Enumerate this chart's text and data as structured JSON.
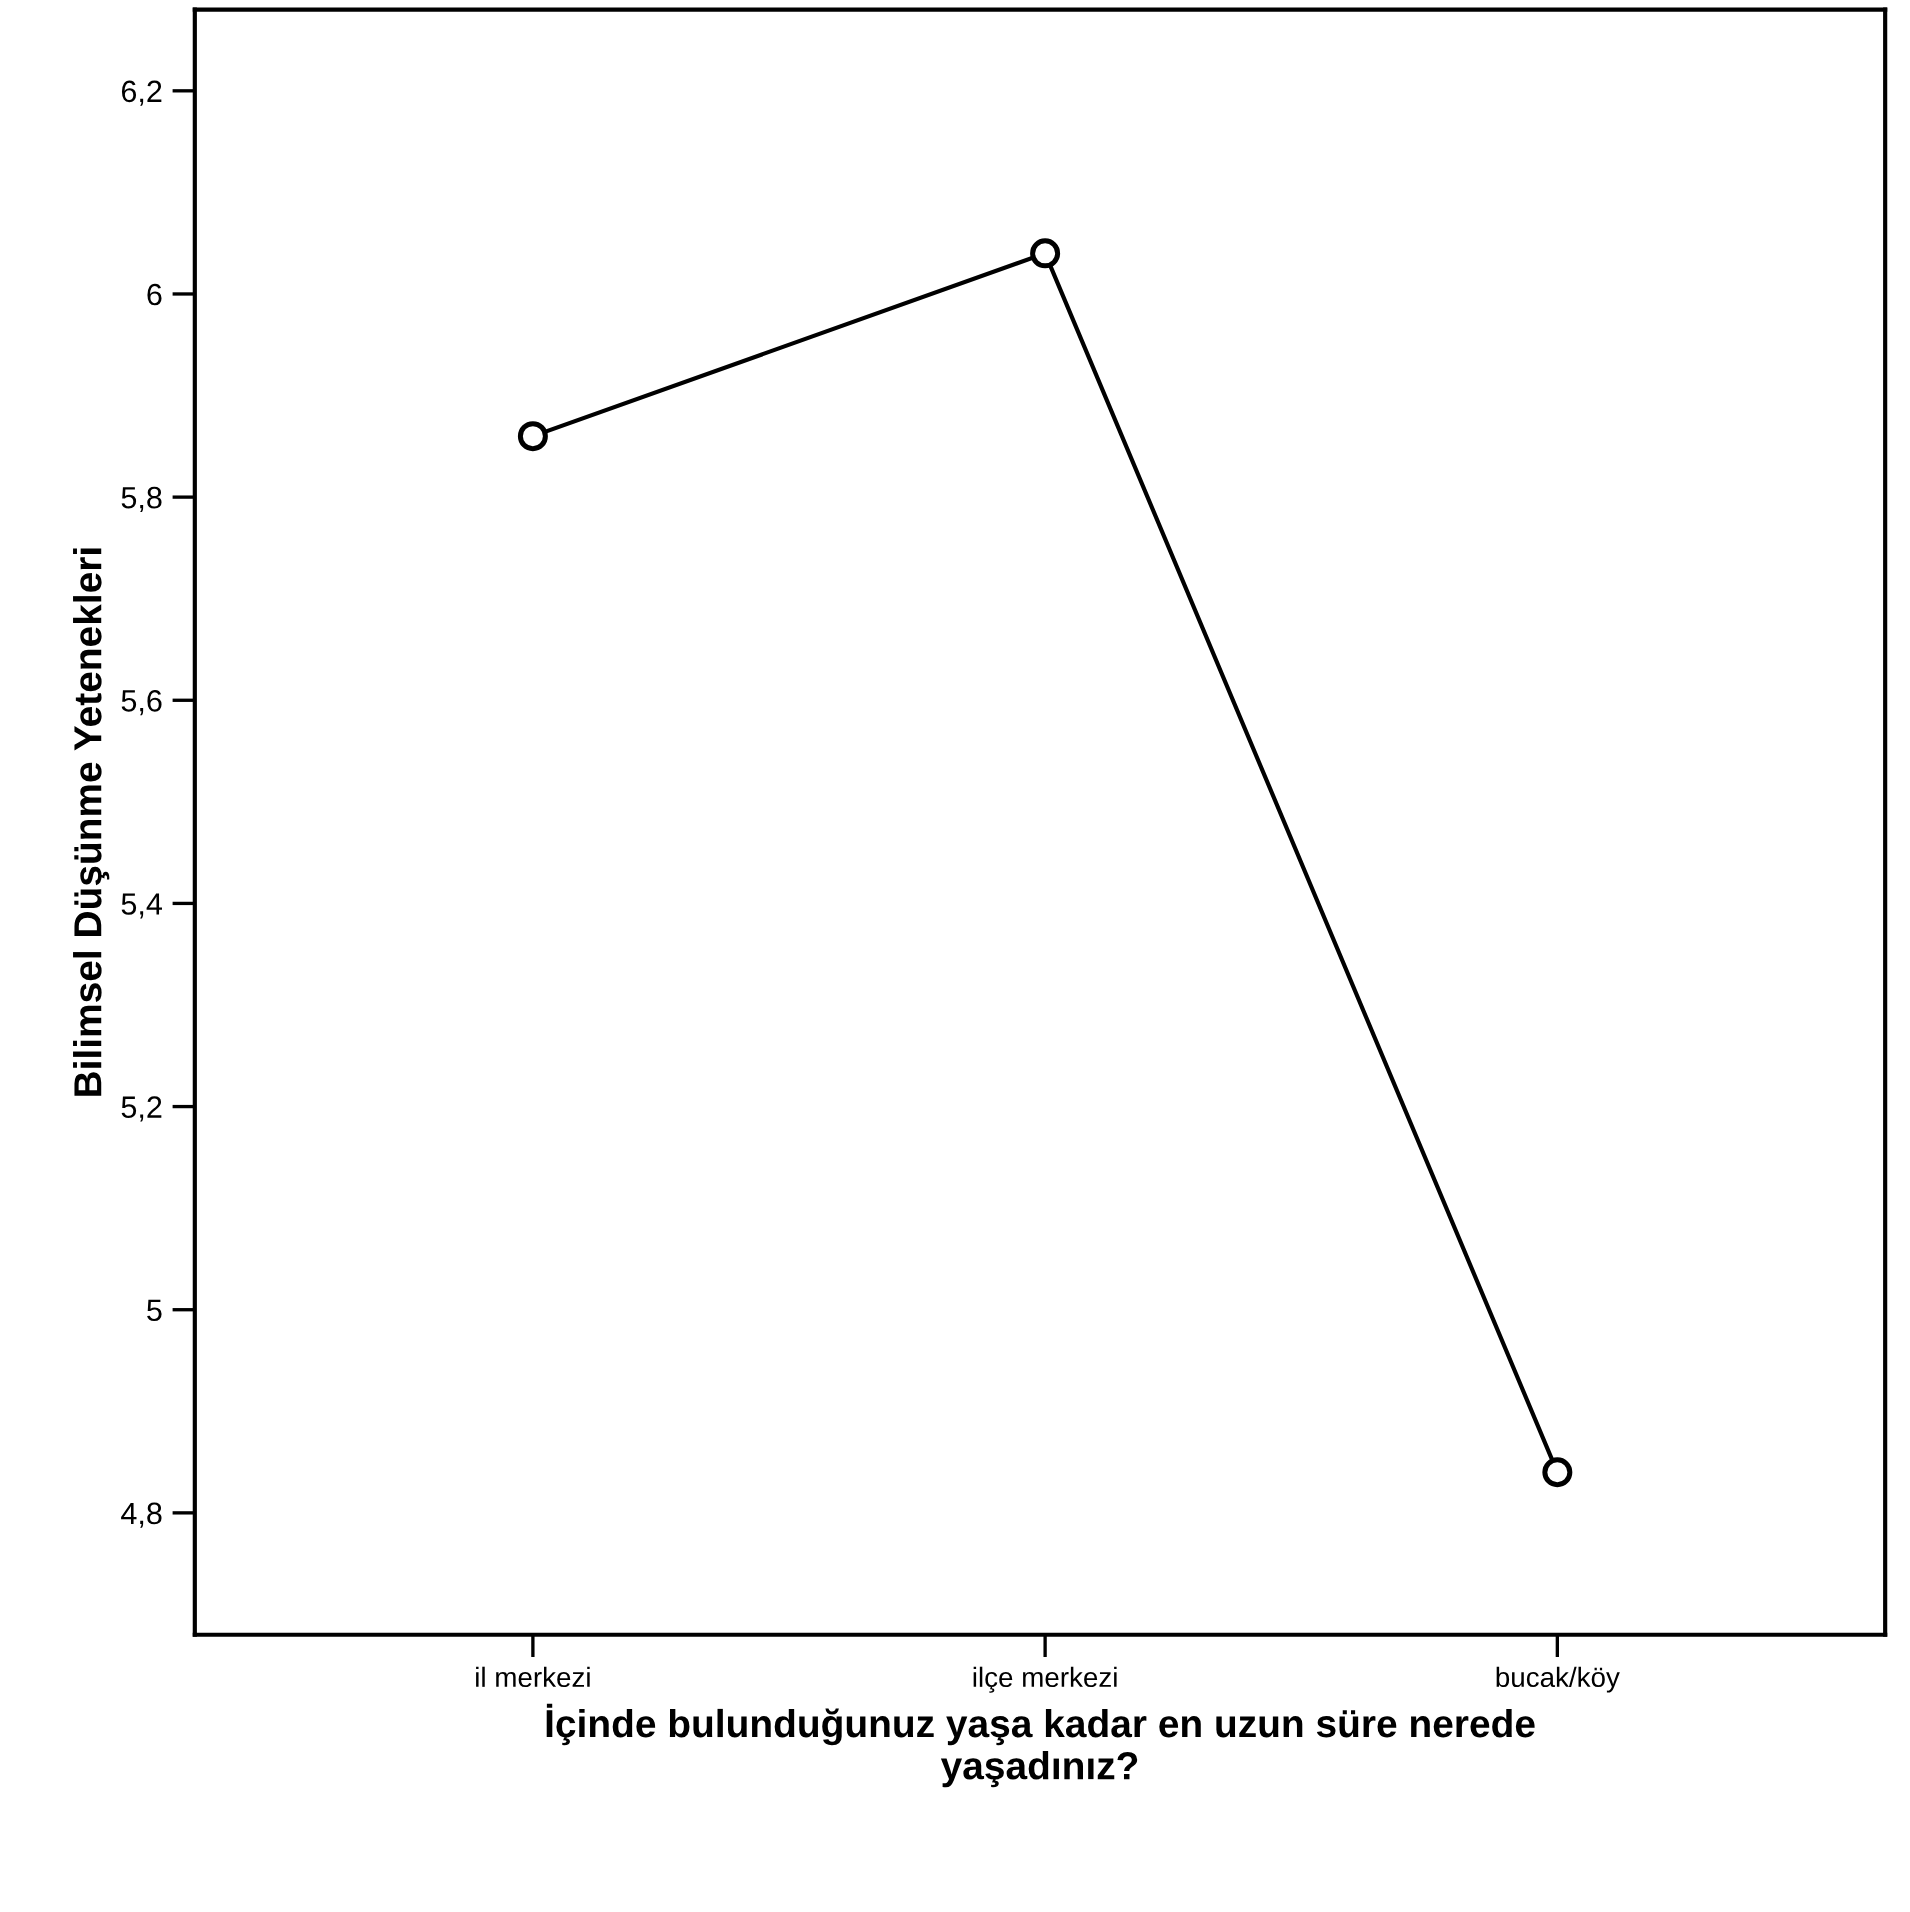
{
  "chart_data": {
    "type": "line",
    "xlabel": "İçinde bulunduğunuz yaşa kadar en uzun süre nerede\nyaşadınız?",
    "ylabel": "Bilimsel Düşünme Yetenekleri",
    "categories": [
      "il merkezi",
      "ilçe merkezi",
      "bucak/köy"
    ],
    "series": [
      {
        "color": "#000000",
        "values": [
          5.86,
          6.04,
          4.84
        ]
      }
    ],
    "ylim": [
      4.68,
      6.28
    ],
    "yticks": [
      {
        "value": 4.8,
        "label": "4,8"
      },
      5,
      {
        "value": 5.2,
        "label": "5,2"
      },
      {
        "value": 5.4,
        "label": "5,4"
      },
      {
        "value": 5.6,
        "label": "5,6"
      },
      {
        "value": 5.8,
        "label": "5,8"
      },
      6,
      {
        "value": 6.2,
        "label": "6,2"
      }
    ],
    "marker": "circle",
    "line_style": "solid",
    "grid": false,
    "legend": false
  }
}
